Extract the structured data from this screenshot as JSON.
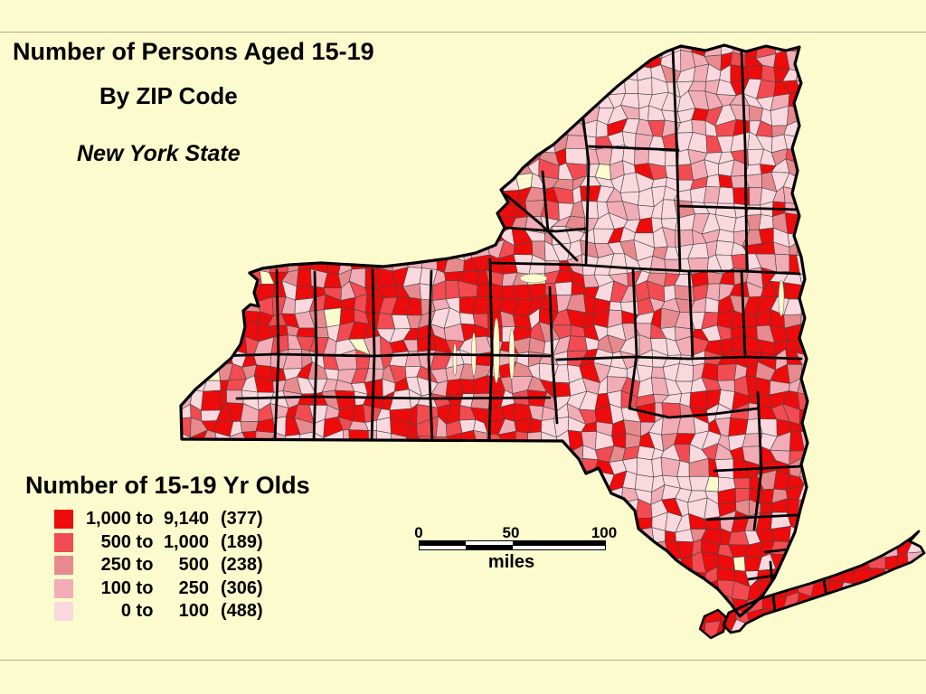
{
  "page": {
    "background": "#FBFBCD",
    "frame_line_color": "#ABAB97"
  },
  "title": {
    "line1": "Number of Persons Aged 15-19",
    "line2": "By ZIP Code",
    "line3": "New York State"
  },
  "legend": {
    "title": "Number of 15-19 Yr Olds",
    "separator": "to",
    "classes": [
      {
        "from": "1,000",
        "to": "9,140",
        "count": "(377)",
        "color": "#EE0B0B"
      },
      {
        "from": "500",
        "to": "1,000",
        "count": "(189)",
        "color": "#F24B51"
      },
      {
        "from": "250",
        "to": "500",
        "count": "(238)",
        "color": "#E78A8D"
      },
      {
        "from": "100",
        "to": "250",
        "count": "(306)",
        "color": "#F1ACB5"
      },
      {
        "from": "0",
        "to": "100",
        "count": "(488)",
        "color": "#F9D8DE"
      }
    ]
  },
  "scalebar": {
    "tick0": "0",
    "tick50": "50",
    "tick100": "100",
    "unit": "miles"
  },
  "map": {
    "region": "New York State",
    "state_border_color": "#000000",
    "county_border_color": "#000000",
    "zip_border_color": "#454545",
    "nodata_color": "#FBFBCD"
  },
  "chart_data": {
    "type": "choropleth-map",
    "title": "Number of Persons Aged 15-19 By ZIP Code — New York State",
    "variable": "Number of 15-19 Yr Olds",
    "unit_of_analysis": "ZIP code",
    "classes": [
      {
        "range": "1,000 to 9,140",
        "zip_count": 377,
        "color": "#EE0B0B"
      },
      {
        "range": "500 to 1,000",
        "zip_count": 189,
        "color": "#F24B51"
      },
      {
        "range": "250 to 500",
        "zip_count": 238,
        "color": "#E78A8D"
      },
      {
        "range": "100 to 250",
        "zip_count": 306,
        "color": "#F1ACB5"
      },
      {
        "range": "0 to 100",
        "zip_count": 488,
        "color": "#F9D8DE"
      }
    ],
    "scale": {
      "ticks_miles": [
        0,
        50,
        100
      ],
      "unit": "miles"
    },
    "legend_position": "bottom-left"
  }
}
